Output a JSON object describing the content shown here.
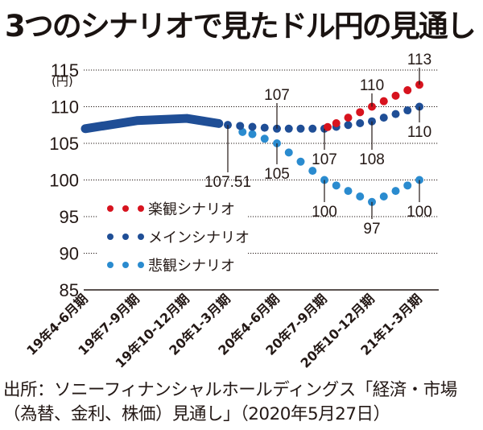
{
  "title": "3つのシナリオで見たドル円の見通し",
  "source": {
    "line1": "出所：ソニーフィナンシャルホールディングス「経済・市場",
    "line2": "（為替、金利、株価）見通し」（2020年5月27日）"
  },
  "chart_data": {
    "type": "line",
    "title": "3つのシナリオで見たドル円の見通し",
    "xlabel": "",
    "ylabel": "(円)",
    "ylim": [
      85,
      115
    ],
    "yticks": [
      115,
      110,
      105,
      100,
      95,
      90,
      85
    ],
    "grid": true,
    "legend_position": "center-left",
    "categories": [
      "19年4-6月期",
      "19年7-9月期",
      "19年10-12月期",
      "20年1-3月期",
      "20年4-6月期",
      "20年7-9月期",
      "20年10-12月期",
      "21年1-3月期"
    ],
    "actual": {
      "name": "実績",
      "color": "#1f4e96",
      "values": [
        107.0,
        108.1,
        108.4,
        107.51
      ]
    },
    "series": [
      {
        "name": "楽観シナリオ",
        "color": "#d7131e",
        "start_index": 5,
        "values": [
          107,
          110,
          113
        ],
        "labels": [
          "",
          "110",
          "113"
        ]
      },
      {
        "name": "メインシナリオ",
        "color": "#1f4e96",
        "start_index": 3,
        "values": [
          107.51,
          107,
          107,
          108,
          110
        ],
        "labels": [
          "107.51",
          "107",
          "107",
          "108",
          "110"
        ]
      },
      {
        "name": "悲観シナリオ",
        "color": "#2a8bcf",
        "start_index": 3,
        "values": [
          107.51,
          105,
          100,
          97,
          100
        ],
        "labels": [
          "",
          "105",
          "100",
          "97",
          "100"
        ]
      }
    ]
  }
}
